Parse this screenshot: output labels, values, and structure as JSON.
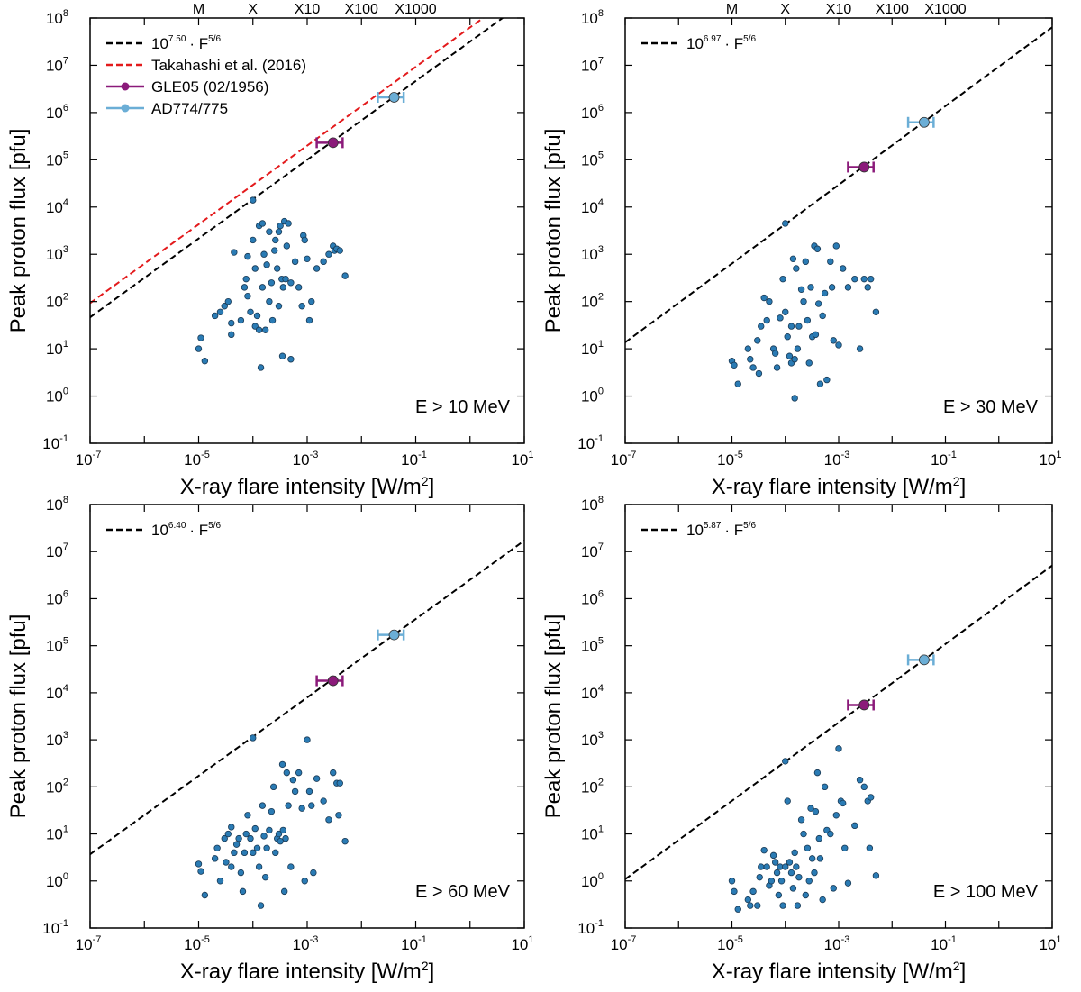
{
  "figure": {
    "xlabel": "X-ray flare intensity [W/m",
    "xlabel_sup": "2",
    "xlabel_end": "]",
    "ylabel": "Peak proton flux [pfu]",
    "flare_classes": [
      {
        "label": "M",
        "value": 1e-05
      },
      {
        "label": "X",
        "value": 0.0001
      },
      {
        "label": "X10",
        "value": 0.001
      },
      {
        "label": "X100",
        "value": 0.01
      },
      {
        "label": "X1000",
        "value": 0.1
      }
    ],
    "x_tick_exponents": [
      "-7",
      "-5",
      "-3",
      "-1",
      "1"
    ],
    "y_tick_exponents": [
      "-1",
      "0",
      "1",
      "2",
      "3",
      "4",
      "5",
      "6",
      "7",
      "8"
    ],
    "tick_base": "10",
    "fit_label_suffix": "· F",
    "fit_exponent_label": "5/6",
    "colors": {
      "scatter": "#2a7bb4",
      "gle05": "#8b1a7a",
      "ad774": "#6baed6",
      "fit": "#000000",
      "takahashi": "#e31a1c"
    }
  },
  "chart_data": [
    {
      "type": "scatter",
      "energy_label": "E > 10 MeV",
      "xlim": [
        1e-07,
        10
      ],
      "ylim": [
        0.1,
        100000000.0
      ],
      "xlabel": "X-ray flare intensity [W/m2]",
      "ylabel": "Peak proton flux [pfu]",
      "fit": {
        "log_coeff": 7.5,
        "label_exp": "7.50",
        "exponent": 0.8333
      },
      "takahashi": {
        "label": "Takahashi et al. (2016)",
        "log_coeff": 7.8,
        "exponent": 0.8333
      },
      "legend": {
        "gle05": "GLE05 (02/1956)",
        "ad774": "AD774/775"
      },
      "gle05": {
        "x": 0.003,
        "y": 230000.0,
        "xerr": [
          0.0015,
          0.0045
        ]
      },
      "ad774": {
        "x": 0.04,
        "y": 2100000.0,
        "xerr": [
          0.02,
          0.06
        ]
      },
      "points": [
        [
          1e-05,
          10
        ],
        [
          1.1e-05,
          17
        ],
        [
          1.3e-05,
          5.5
        ],
        [
          2e-05,
          50
        ],
        [
          2.5e-05,
          60
        ],
        [
          3e-05,
          80
        ],
        [
          3.5e-05,
          100
        ],
        [
          4e-05,
          20
        ],
        [
          4e-05,
          35
        ],
        [
          4.5e-05,
          1100
        ],
        [
          6e-05,
          40
        ],
        [
          7e-05,
          200
        ],
        [
          7.5e-05,
          300
        ],
        [
          8e-05,
          900
        ],
        [
          8e-05,
          130
        ],
        [
          9e-05,
          60
        ],
        [
          0.0001,
          14000
        ],
        [
          0.0001,
          2000
        ],
        [
          0.00011,
          500
        ],
        [
          0.00011,
          30
        ],
        [
          0.00012,
          50
        ],
        [
          0.00013,
          4000
        ],
        [
          0.00013,
          25
        ],
        [
          0.00014,
          4
        ],
        [
          0.00015,
          4500
        ],
        [
          0.00015,
          200
        ],
        [
          0.00016,
          1000
        ],
        [
          0.00017,
          25
        ],
        [
          0.00018,
          600
        ],
        [
          0.0002,
          3000
        ],
        [
          0.0002,
          100
        ],
        [
          0.00022,
          250
        ],
        [
          0.00023,
          40
        ],
        [
          0.00025,
          1200
        ],
        [
          0.00026,
          2000
        ],
        [
          0.00028,
          500
        ],
        [
          0.0003,
          80
        ],
        [
          0.0003,
          3000
        ],
        [
          0.00032,
          4000
        ],
        [
          0.00034,
          300
        ],
        [
          0.00035,
          7
        ],
        [
          0.00036,
          200
        ],
        [
          0.00038,
          5000
        ],
        [
          0.0004,
          300
        ],
        [
          0.00042,
          1500
        ],
        [
          0.00045,
          4500
        ],
        [
          0.0005,
          250
        ],
        [
          0.0005,
          6
        ],
        [
          0.0006,
          700
        ],
        [
          0.0007,
          200
        ],
        [
          0.0008,
          80
        ],
        [
          0.00085,
          2500
        ],
        [
          0.0009,
          2000
        ],
        [
          0.001,
          800
        ],
        [
          0.0011,
          40
        ],
        [
          0.0012,
          100
        ],
        [
          0.0015,
          500
        ],
        [
          0.002,
          700
        ],
        [
          0.0025,
          1000
        ],
        [
          0.003,
          1500
        ],
        [
          0.0032,
          1200
        ],
        [
          0.0035,
          1300
        ],
        [
          0.004,
          1200
        ],
        [
          0.005,
          350
        ]
      ]
    },
    {
      "type": "scatter",
      "energy_label": "E > 30 MeV",
      "xlim": [
        1e-07,
        10
      ],
      "ylim": [
        0.1,
        100000000.0
      ],
      "xlabel": "X-ray flare intensity [W/m2]",
      "ylabel": "Peak proton flux [pfu]",
      "fit": {
        "log_coeff": 6.97,
        "label_exp": "6.97",
        "exponent": 0.8333
      },
      "gle05": {
        "x": 0.003,
        "y": 70000.0,
        "xerr": [
          0.0015,
          0.0045
        ]
      },
      "ad774": {
        "x": 0.04,
        "y": 620000.0,
        "xerr": [
          0.02,
          0.06
        ]
      },
      "points": [
        [
          1e-05,
          5.5
        ],
        [
          1.1e-05,
          4.5
        ],
        [
          1.3e-05,
          1.8
        ],
        [
          2e-05,
          10
        ],
        [
          2.2e-05,
          6
        ],
        [
          2.5e-05,
          4
        ],
        [
          3e-05,
          15
        ],
        [
          3.2e-05,
          3
        ],
        [
          3.5e-05,
          30
        ],
        [
          4e-05,
          120
        ],
        [
          4.5e-05,
          40
        ],
        [
          5e-05,
          100
        ],
        [
          6e-05,
          10
        ],
        [
          6.5e-05,
          8
        ],
        [
          7e-05,
          4
        ],
        [
          8e-05,
          45
        ],
        [
          9e-05,
          300
        ],
        [
          0.0001,
          4500
        ],
        [
          0.0001,
          60
        ],
        [
          0.00011,
          18
        ],
        [
          0.00012,
          7
        ],
        [
          0.00013,
          5
        ],
        [
          0.00013,
          30
        ],
        [
          0.00014,
          800
        ],
        [
          0.00015,
          0.9
        ],
        [
          0.00015,
          6
        ],
        [
          0.00016,
          500
        ],
        [
          0.00017,
          10
        ],
        [
          0.00018,
          30
        ],
        [
          0.0002,
          180
        ],
        [
          0.00022,
          100
        ],
        [
          0.00024,
          700
        ],
        [
          0.00026,
          40
        ],
        [
          0.00028,
          5
        ],
        [
          0.0003,
          200
        ],
        [
          0.00032,
          18
        ],
        [
          0.00035,
          1500
        ],
        [
          0.00037,
          20
        ],
        [
          0.0004,
          1300
        ],
        [
          0.00042,
          90
        ],
        [
          0.00045,
          1.8
        ],
        [
          0.0005,
          50
        ],
        [
          0.00055,
          150
        ],
        [
          0.0006,
          2.2
        ],
        [
          0.0007,
          700
        ],
        [
          0.00075,
          200
        ],
        [
          0.0008,
          15
        ],
        [
          0.0009,
          1500
        ],
        [
          0.001,
          12
        ],
        [
          0.0012,
          500
        ],
        [
          0.0015,
          200
        ],
        [
          0.002,
          300
        ],
        [
          0.0025,
          10
        ],
        [
          0.003,
          300
        ],
        [
          0.0035,
          200
        ],
        [
          0.004,
          300
        ],
        [
          0.005,
          60
        ]
      ]
    },
    {
      "type": "scatter",
      "energy_label": "E > 60 MeV",
      "xlim": [
        1e-07,
        10
      ],
      "ylim": [
        0.1,
        100000000.0
      ],
      "xlabel": "X-ray flare intensity [W/m2]",
      "ylabel": "Peak proton flux [pfu]",
      "fit": {
        "log_coeff": 6.4,
        "label_exp": "6.40",
        "exponent": 0.8333
      },
      "gle05": {
        "x": 0.003,
        "y": 18000.0,
        "xerr": [
          0.0015,
          0.0045
        ]
      },
      "ad774": {
        "x": 0.04,
        "y": 170000.0,
        "xerr": [
          0.02,
          0.06
        ]
      },
      "points": [
        [
          1e-05,
          2.3
        ],
        [
          1.1e-05,
          1.6
        ],
        [
          1.3e-05,
          0.5
        ],
        [
          2e-05,
          3
        ],
        [
          2.2e-05,
          5
        ],
        [
          2.5e-05,
          1
        ],
        [
          3e-05,
          8
        ],
        [
          3.2e-05,
          2.5
        ],
        [
          3.5e-05,
          10
        ],
        [
          4e-05,
          14
        ],
        [
          4e-05,
          2
        ],
        [
          4.5e-05,
          4
        ],
        [
          5e-05,
          6
        ],
        [
          5.5e-05,
          8
        ],
        [
          6e-05,
          1.5
        ],
        [
          6.5e-05,
          0.6
        ],
        [
          7e-05,
          4
        ],
        [
          7.5e-05,
          10
        ],
        [
          8e-05,
          25
        ],
        [
          9e-05,
          8
        ],
        [
          0.0001,
          1100
        ],
        [
          0.0001,
          4
        ],
        [
          0.00011,
          13
        ],
        [
          0.00012,
          5
        ],
        [
          0.00013,
          2
        ],
        [
          0.00014,
          0.3
        ],
        [
          0.00015,
          40
        ],
        [
          0.00016,
          9
        ],
        [
          0.00017,
          1.2
        ],
        [
          0.00018,
          5
        ],
        [
          0.0002,
          12
        ],
        [
          0.00022,
          30
        ],
        [
          0.00024,
          100
        ],
        [
          0.00026,
          4
        ],
        [
          0.00028,
          8
        ],
        [
          0.0003,
          10
        ],
        [
          0.00032,
          7
        ],
        [
          0.00035,
          300
        ],
        [
          0.00036,
          12
        ],
        [
          0.00038,
          0.6
        ],
        [
          0.0004,
          8
        ],
        [
          0.00042,
          200
        ],
        [
          0.00045,
          40
        ],
        [
          0.0005,
          2
        ],
        [
          0.00055,
          140
        ],
        [
          0.0006,
          80
        ],
        [
          0.0007,
          200
        ],
        [
          0.0008,
          35
        ],
        [
          0.0009,
          1
        ],
        [
          0.001,
          1000
        ],
        [
          0.0011,
          80
        ],
        [
          0.0012,
          40
        ],
        [
          0.0013,
          1.5
        ],
        [
          0.0015,
          150
        ],
        [
          0.002,
          50
        ],
        [
          0.0025,
          20
        ],
        [
          0.003,
          200
        ],
        [
          0.0035,
          120
        ],
        [
          0.0038,
          25
        ],
        [
          0.004,
          120
        ],
        [
          0.005,
          7
        ]
      ]
    },
    {
      "type": "scatter",
      "energy_label": "E > 100 MeV",
      "xlim": [
        1e-07,
        10
      ],
      "ylim": [
        0.1,
        100000000.0
      ],
      "xlabel": "X-ray flare intensity [W/m2]",
      "ylabel": "Peak proton flux [pfu]",
      "fit": {
        "log_coeff": 5.87,
        "label_exp": "5.87",
        "exponent": 0.8333
      },
      "gle05": {
        "x": 0.003,
        "y": 5500,
        "xerr": [
          0.0015,
          0.0045
        ]
      },
      "ad774": {
        "x": 0.04,
        "y": 50000.0,
        "xerr": [
          0.02,
          0.06
        ]
      },
      "points": [
        [
          1e-05,
          1
        ],
        [
          1.1e-05,
          0.6
        ],
        [
          1.3e-05,
          0.25
        ],
        [
          2e-05,
          0.4
        ],
        [
          2.2e-05,
          0.3
        ],
        [
          2.5e-05,
          0.6
        ],
        [
          3e-05,
          0.3
        ],
        [
          3.3e-05,
          1.2
        ],
        [
          3.5e-05,
          2
        ],
        [
          4e-05,
          4.5
        ],
        [
          4.5e-05,
          2
        ],
        [
          5e-05,
          0.8
        ],
        [
          5.5e-05,
          1
        ],
        [
          6e-05,
          3.5
        ],
        [
          6.5e-05,
          2.5
        ],
        [
          7e-05,
          1.5
        ],
        [
          7.5e-05,
          0.5
        ],
        [
          8e-05,
          2
        ],
        [
          8.5e-05,
          1
        ],
        [
          9e-05,
          0.3
        ],
        [
          0.0001,
          350
        ],
        [
          0.0001,
          2
        ],
        [
          0.00011,
          50
        ],
        [
          0.00012,
          2.5
        ],
        [
          0.00013,
          1.5
        ],
        [
          0.00014,
          0.7
        ],
        [
          0.00015,
          4
        ],
        [
          0.00016,
          2
        ],
        [
          0.00017,
          0.3
        ],
        [
          0.00018,
          1.2
        ],
        [
          0.0002,
          20
        ],
        [
          0.00022,
          10
        ],
        [
          0.00024,
          0.5
        ],
        [
          0.00026,
          5
        ],
        [
          0.00028,
          1
        ],
        [
          0.0003,
          35
        ],
        [
          0.00032,
          3
        ],
        [
          0.00035,
          1.5
        ],
        [
          0.00037,
          30
        ],
        [
          0.0004,
          200
        ],
        [
          0.00043,
          8
        ],
        [
          0.00045,
          3
        ],
        [
          0.0005,
          0.4
        ],
        [
          0.00055,
          100
        ],
        [
          0.0006,
          12
        ],
        [
          0.0007,
          10
        ],
        [
          0.0008,
          0.7
        ],
        [
          0.0009,
          25
        ],
        [
          0.001,
          650
        ],
        [
          0.0011,
          50
        ],
        [
          0.0012,
          45
        ],
        [
          0.0013,
          5
        ],
        [
          0.0015,
          0.9
        ],
        [
          0.002,
          15
        ],
        [
          0.0025,
          140
        ],
        [
          0.003,
          100
        ],
        [
          0.0035,
          50
        ],
        [
          0.0038,
          5
        ],
        [
          0.004,
          60
        ],
        [
          0.005,
          1.3
        ]
      ]
    }
  ]
}
